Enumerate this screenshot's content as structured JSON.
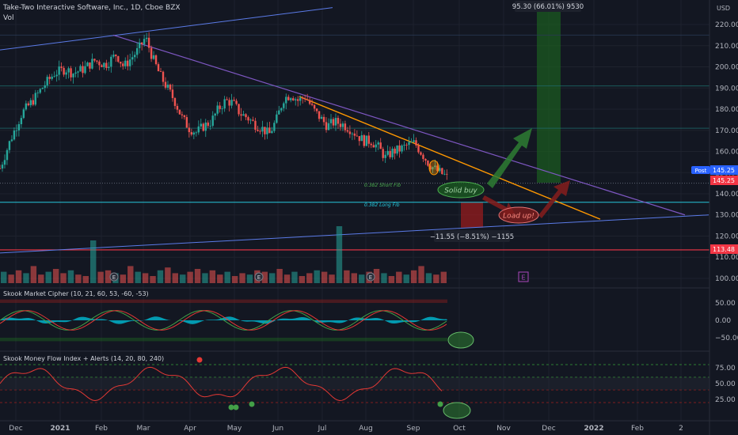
{
  "header": {
    "title": "Take-Two Interactive Software, Inc., 1D, Cboe BZX",
    "vol_label": "Vol",
    "currency": "USD"
  },
  "colors": {
    "background": "#131722",
    "up": "#26a69a",
    "down": "#ef5350",
    "grid": "#1e222d",
    "purple_line": "#7e57c2",
    "blue_line": "#5b7be8",
    "orange_line": "#ff9800",
    "cyan_line": "#26c6da",
    "red_line": "#f23645",
    "green_zone": "#1b5e20",
    "red_zone": "#b71c1c",
    "label_blue": "#2962ff",
    "label_red": "#f23645"
  },
  "chart_data": {
    "type": "candlestick",
    "title": "Take-Two Interactive Software, Inc., 1D, Cboe BZX",
    "x_ticks": [
      "Dec",
      "2021",
      "Feb",
      "Mar",
      "Apr",
      "May",
      "Jun",
      "Jul",
      "Aug",
      "Sep",
      "Oct",
      "Nov",
      "Dec",
      "2022",
      "Feb",
      "2"
    ],
    "y_ticks": [
      100,
      110,
      120,
      130,
      140,
      150,
      160,
      170,
      180,
      190,
      200,
      210,
      220
    ],
    "ylim": [
      97,
      226
    ],
    "price_path": [
      [
        0,
        152
      ],
      [
        6,
        166
      ],
      [
        12,
        178
      ],
      [
        18,
        184
      ],
      [
        24,
        191
      ],
      [
        30,
        197
      ],
      [
        36,
        199
      ],
      [
        40,
        197
      ],
      [
        46,
        199
      ],
      [
        52,
        203
      ],
      [
        58,
        201
      ],
      [
        64,
        206
      ],
      [
        68,
        200
      ],
      [
        72,
        204
      ],
      [
        76,
        208
      ],
      [
        80,
        214
      ],
      [
        84,
        204
      ],
      [
        88,
        196
      ],
      [
        92,
        190
      ],
      [
        96,
        184
      ],
      [
        100,
        176
      ],
      [
        104,
        171
      ],
      [
        108,
        169
      ],
      [
        112,
        172
      ],
      [
        116,
        174
      ],
      [
        120,
        180
      ],
      [
        124,
        184
      ],
      [
        128,
        183
      ],
      [
        132,
        178
      ],
      [
        136,
        176
      ],
      [
        140,
        173
      ],
      [
        144,
        171
      ],
      [
        148,
        168
      ],
      [
        152,
        175
      ],
      [
        156,
        185
      ],
      [
        160,
        187
      ],
      [
        164,
        184
      ],
      [
        168,
        186
      ],
      [
        172,
        180
      ],
      [
        176,
        176
      ],
      [
        180,
        172
      ],
      [
        184,
        174
      ],
      [
        188,
        173
      ],
      [
        192,
        171
      ],
      [
        196,
        168
      ],
      [
        200,
        165
      ],
      [
        204,
        165
      ],
      [
        208,
        162
      ],
      [
        212,
        157
      ],
      [
        216,
        160
      ],
      [
        220,
        161
      ],
      [
        224,
        163
      ],
      [
        228,
        164
      ],
      [
        232,
        159
      ],
      [
        236,
        154
      ],
      [
        240,
        151
      ],
      [
        244,
        149
      ],
      [
        246,
        147.5
      ]
    ],
    "volume": [
      8,
      6,
      9,
      7,
      12,
      6,
      8,
      10,
      7,
      9,
      6,
      5,
      30,
      8,
      9,
      7,
      6,
      12,
      8,
      7,
      5,
      9,
      11,
      7,
      6,
      8,
      10,
      7,
      9,
      6,
      8,
      5,
      7,
      6,
      9,
      8,
      7,
      10,
      6,
      8,
      5,
      7,
      9,
      8,
      6,
      40,
      9,
      7,
      6,
      8,
      10,
      7,
      5,
      8,
      6,
      9,
      12,
      7,
      6,
      8
    ],
    "price_labels": {
      "post_label": "Post",
      "post_value": "145.25",
      "last_value": "145.25",
      "support_value": "113.48"
    },
    "annotations": {
      "fib_short": "0.382 Short Fib",
      "fib_long": "0.382 Long Fib",
      "solid_buy": "Solid buy",
      "load_up": "Load up!",
      "long_measure": "95.30 (66.01%) 9530",
      "short_measure": "−11.55 (−8.51%) −1155",
      "earnings_marker": "E"
    },
    "levels": {
      "horizontal": [
        215,
        191,
        171,
        145,
        136
      ],
      "support": 113.48,
      "fib_short": 145,
      "fib_long": 136
    },
    "trendlines": {
      "purple": [
        [
          143,
          215
        ],
        [
          865,
          130
        ]
      ],
      "blue_upper": [
        [
          0,
          208
        ],
        [
          420,
          228
        ]
      ],
      "blue_lower": [
        [
          0,
          112
        ],
        [
          895,
          130
        ]
      ],
      "orange": [
        [
          378,
          186
        ],
        [
          758,
          128
        ]
      ]
    },
    "market_cipher": {
      "title": "Skook Market Cipher (10, 21, 60, 53, -60, -53)",
      "y_ticks": [
        "50.00",
        "0.00",
        "−50.00"
      ]
    },
    "mfi": {
      "title": "Skook Money Flow Index + Alerts (14, 20, 80, 240)",
      "y_ticks": [
        "75.00",
        "50.00",
        "25.00"
      ]
    }
  }
}
